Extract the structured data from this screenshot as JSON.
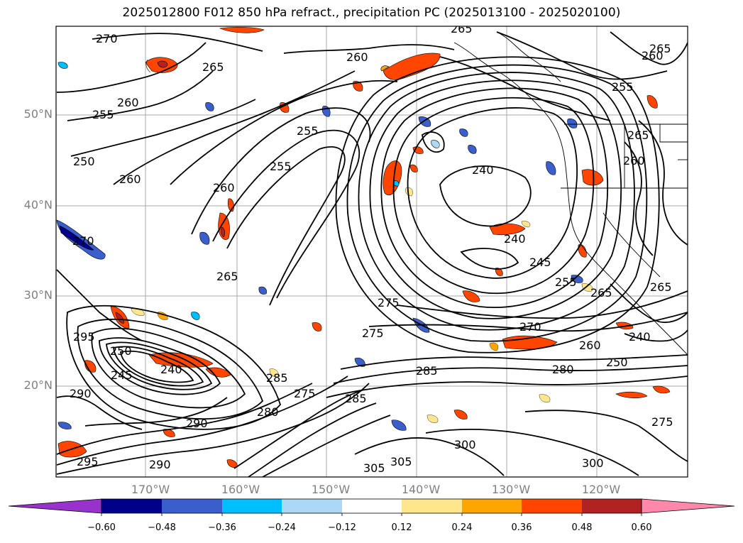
{
  "title": "2025012800 F012 850 hPa refract., precipitation PC (2025013100 - 2025020100)",
  "map": {
    "lat_ticks": [
      "50°N",
      "40°N",
      "30°N",
      "20°N"
    ],
    "lon_ticks": [
      "170°W",
      "160°W",
      "150°W",
      "140°W",
      "130°W",
      "120°W"
    ],
    "grid": true,
    "contour_levels_shown": [
      240,
      245,
      250,
      255,
      260,
      265,
      270,
      275,
      280,
      285,
      290,
      295,
      300,
      305
    ],
    "contour_labels": [
      {
        "text": "270"
      },
      {
        "text": "265"
      },
      {
        "text": "260"
      },
      {
        "text": "255"
      },
      {
        "text": "250"
      },
      {
        "text": "260"
      },
      {
        "text": "255"
      },
      {
        "text": "260"
      },
      {
        "text": "265"
      },
      {
        "text": "270"
      },
      {
        "text": "260"
      },
      {
        "text": "240"
      },
      {
        "text": "240"
      },
      {
        "text": "245"
      },
      {
        "text": "255"
      },
      {
        "text": "265"
      },
      {
        "text": "270"
      },
      {
        "text": "260"
      },
      {
        "text": "250"
      },
      {
        "text": "240"
      },
      {
        "text": "265"
      },
      {
        "text": "280"
      },
      {
        "text": "285"
      },
      {
        "text": "275"
      },
      {
        "text": "285"
      },
      {
        "text": "295"
      },
      {
        "text": "290"
      },
      {
        "text": "245"
      },
      {
        "text": "240"
      },
      {
        "text": "290"
      },
      {
        "text": "285"
      },
      {
        "text": "280"
      },
      {
        "text": "300"
      },
      {
        "text": "305"
      },
      {
        "text": "305"
      },
      {
        "text": "300"
      },
      {
        "text": "275"
      },
      {
        "text": "295"
      },
      {
        "text": "290"
      },
      {
        "text": "265"
      },
      {
        "text": "255"
      },
      {
        "text": "260"
      },
      {
        "text": "265"
      },
      {
        "text": "275"
      },
      {
        "text": "250"
      },
      {
        "text": "265"
      },
      {
        "text": "255"
      },
      {
        "text": "260"
      },
      {
        "text": "275"
      }
    ]
  },
  "colorbar": {
    "ticks": [
      "−0.60",
      "−0.48",
      "−0.36",
      "−0.24",
      "−0.12",
      "0.12",
      "0.24",
      "0.36",
      "0.48",
      "0.60"
    ],
    "colors": [
      "#9932cc",
      "#00008b",
      "#3a5fcd",
      "#00bfff",
      "#add8f5",
      "#ffffff",
      "#ffe68c",
      "#ffa500",
      "#ff4500",
      "#b22222",
      "#ff88aa"
    ]
  }
}
